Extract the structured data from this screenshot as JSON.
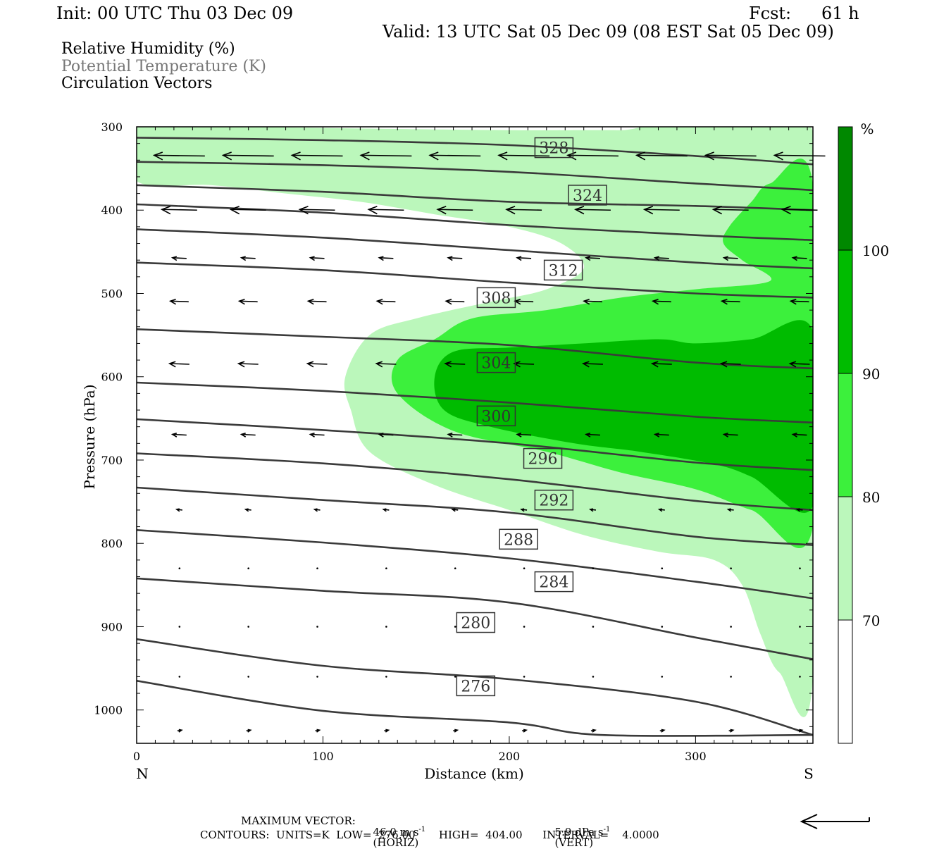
{
  "header": {
    "init": "Init: 00 UTC Thu 03 Dec 09",
    "fcst_label": "Fcst:",
    "fcst_value": "61 h",
    "valid": "Valid: 13 UTC Sat 05 Dec 09 (08 EST Sat 05 Dec 09)"
  },
  "legend": {
    "rh": "Relative Humidity (%)",
    "theta": "Potential Temperature (K)",
    "vectors": "Circulation Vectors"
  },
  "footer": {
    "max_vector_label": "MAXIMUM VECTOR:",
    "horiz_value": "46.0 m s",
    "horiz_exp": "-1",
    "horiz_tag": "(HORIZ)",
    "vert_value": "5.9 dPa s",
    "vert_exp": "-1",
    "vert_tag": "(VERT)",
    "contours": "CONTOURS:  UNITS=K  LOW=  276.00       HIGH=  404.00      INTERVAL=    4.0000"
  },
  "colors": {
    "rh_70_80": "#bbf7bb",
    "rh_80_90": "#3cf03c",
    "rh_90_100": "#00bb00",
    "rh_100": "#008800",
    "contour": "#3a3a3a",
    "vector": "#000000"
  },
  "chart_data": {
    "type": "cross-section",
    "xlabel": "Distance (km)",
    "ylabel": "Pressure (hPa)",
    "x_range": [
      0,
      363
    ],
    "y_range": [
      1040,
      300
    ],
    "y_scale": "linear, inverted",
    "x_ticks": [
      0,
      100,
      200,
      300
    ],
    "y_ticks": [
      300,
      400,
      500,
      600,
      700,
      800,
      900,
      1000
    ],
    "x_end_labels": {
      "left": "N",
      "right": "S"
    },
    "colorbar": {
      "unit": "%",
      "levels": [
        70,
        80,
        90,
        100
      ],
      "labels": [
        "70",
        "80",
        "90",
        "100"
      ]
    },
    "rh_regions": [
      {
        "range": "70-80",
        "outline": [
          [
            0,
            300
          ],
          [
            60,
            300
          ],
          [
            120,
            302
          ],
          [
            200,
            304
          ],
          [
            260,
            304
          ],
          [
            363,
            306
          ],
          [
            363,
            960
          ],
          [
            345,
            955
          ],
          [
            335,
            910
          ],
          [
            325,
            850
          ],
          [
            310,
            820
          ],
          [
            280,
            810
          ],
          [
            240,
            790
          ],
          [
            200,
            760
          ],
          [
            160,
            730
          ],
          [
            125,
            690
          ],
          [
            115,
            640
          ],
          [
            112,
            600
          ],
          [
            125,
            550
          ],
          [
            150,
            530
          ],
          [
            190,
            510
          ],
          [
            220,
            495
          ],
          [
            240,
            470
          ],
          [
            228,
            440
          ],
          [
            200,
            420
          ],
          [
            160,
            405
          ],
          [
            120,
            390
          ],
          [
            80,
            380
          ],
          [
            40,
            370
          ],
          [
            0,
            365
          ]
        ]
      },
      {
        "range": "80-90",
        "outline": [
          [
            363,
            370
          ],
          [
            340,
            368
          ],
          [
            330,
            390
          ],
          [
            318,
            420
          ],
          [
            315,
            440
          ],
          [
            325,
            460
          ],
          [
            340,
            485
          ],
          [
            300,
            495
          ],
          [
            260,
            505
          ],
          [
            220,
            520
          ],
          [
            180,
            530
          ],
          [
            160,
            555
          ],
          [
            140,
            580
          ],
          [
            140,
            620
          ],
          [
            170,
            665
          ],
          [
            220,
            690
          ],
          [
            260,
            715
          ],
          [
            300,
            735
          ],
          [
            330,
            760
          ],
          [
            363,
            780
          ]
        ]
      },
      {
        "range": "90-100",
        "outline": [
          [
            363,
            545
          ],
          [
            330,
            555
          ],
          [
            300,
            560
          ],
          [
            280,
            555
          ],
          [
            240,
            560
          ],
          [
            200,
            565
          ],
          [
            170,
            570
          ],
          [
            160,
            600
          ],
          [
            165,
            640
          ],
          [
            190,
            660
          ],
          [
            235,
            680
          ],
          [
            270,
            690
          ],
          [
            310,
            705
          ],
          [
            330,
            720
          ],
          [
            363,
            755
          ]
        ]
      }
    ],
    "isentropes": [
      {
        "label": "328",
        "points": [
          [
            0,
            313
          ],
          [
            100,
            316
          ],
          [
            200,
            322
          ],
          [
            300,
            335
          ],
          [
            363,
            345
          ]
        ]
      },
      {
        "label": "",
        "points": [
          [
            0,
            342
          ],
          [
            100,
            346
          ],
          [
            200,
            354
          ],
          [
            300,
            368
          ],
          [
            363,
            376
          ]
        ]
      },
      {
        "label": "324",
        "points": [
          [
            0,
            370
          ],
          [
            100,
            378
          ],
          [
            200,
            390
          ],
          [
            300,
            395
          ],
          [
            363,
            400
          ]
        ]
      },
      {
        "label": "",
        "points": [
          [
            0,
            393
          ],
          [
            100,
            403
          ],
          [
            200,
            418
          ],
          [
            300,
            430
          ],
          [
            363,
            436
          ]
        ]
      },
      {
        "label": "",
        "points": [
          [
            0,
            423
          ],
          [
            100,
            433
          ],
          [
            200,
            448
          ],
          [
            300,
            463
          ],
          [
            363,
            470
          ]
        ]
      },
      {
        "label": "312",
        "points": [
          [
            0,
            463
          ],
          [
            100,
            472
          ],
          [
            200,
            487
          ],
          [
            300,
            500
          ],
          [
            363,
            505
          ]
        ]
      },
      {
        "label": "308",
        "points": [
          [
            0,
            543
          ],
          [
            100,
            552
          ],
          [
            200,
            562
          ],
          [
            300,
            583
          ],
          [
            363,
            590
          ]
        ]
      },
      {
        "label": "304",
        "points": [
          [
            0,
            607
          ],
          [
            100,
            617
          ],
          [
            200,
            631
          ],
          [
            300,
            648
          ],
          [
            363,
            655
          ]
        ]
      },
      {
        "label": "300",
        "points": [
          [
            0,
            651
          ],
          [
            100,
            664
          ],
          [
            200,
            680
          ],
          [
            300,
            703
          ],
          [
            363,
            712
          ]
        ]
      },
      {
        "label": "296",
        "points": [
          [
            0,
            692
          ],
          [
            100,
            704
          ],
          [
            200,
            723
          ],
          [
            300,
            749
          ],
          [
            363,
            760
          ]
        ]
      },
      {
        "label": "292",
        "points": [
          [
            0,
            733
          ],
          [
            100,
            748
          ],
          [
            200,
            763
          ],
          [
            300,
            792
          ],
          [
            363,
            802
          ]
        ]
      },
      {
        "label": "288",
        "points": [
          [
            0,
            784
          ],
          [
            100,
            799
          ],
          [
            200,
            818
          ],
          [
            300,
            846
          ],
          [
            363,
            866
          ]
        ]
      },
      {
        "label": "284",
        "points": [
          [
            0,
            842
          ],
          [
            100,
            857
          ],
          [
            200,
            871
          ],
          [
            300,
            913
          ],
          [
            363,
            939
          ]
        ]
      },
      {
        "label": "280",
        "points": [
          [
            0,
            915
          ],
          [
            100,
            947
          ],
          [
            200,
            963
          ],
          [
            300,
            990
          ],
          [
            363,
            1030
          ]
        ]
      },
      {
        "label": "276",
        "points": [
          [
            0,
            965
          ],
          [
            100,
            1001
          ],
          [
            200,
            1015
          ],
          [
            250,
            1030
          ],
          [
            363,
            1030
          ]
        ]
      }
    ],
    "contour_labels": [
      {
        "text": "328",
        "x": 224,
        "p": 325
      },
      {
        "text": "324",
        "x": 242,
        "p": 382
      },
      {
        "text": "312",
        "x": 229,
        "p": 472
      },
      {
        "text": "308",
        "x": 193,
        "p": 505
      },
      {
        "text": "304",
        "x": 193,
        "p": 583
      },
      {
        "text": "300",
        "x": 193,
        "p": 647
      },
      {
        "text": "296",
        "x": 218,
        "p": 698
      },
      {
        "text": "292",
        "x": 224,
        "p": 748
      },
      {
        "text": "288",
        "x": 205,
        "p": 795
      },
      {
        "text": "284",
        "x": 224,
        "p": 846
      },
      {
        "text": "280",
        "x": 182,
        "p": 895
      },
      {
        "text": "276",
        "x": 182,
        "p": 971
      }
    ],
    "vector_rows": [
      {
        "p": 335,
        "u": -36
      },
      {
        "p": 400,
        "u": -25
      },
      {
        "p": 458,
        "u": -10
      },
      {
        "p": 510,
        "u": -13
      },
      {
        "p": 585,
        "u": -14
      },
      {
        "p": 670,
        "u": -10
      },
      {
        "p": 760,
        "u": -4
      },
      {
        "p": 830,
        "u": -1
      },
      {
        "p": 900,
        "u": 0
      },
      {
        "p": 960,
        "u": 1
      },
      {
        "p": 1025,
        "u": 3
      }
    ]
  }
}
